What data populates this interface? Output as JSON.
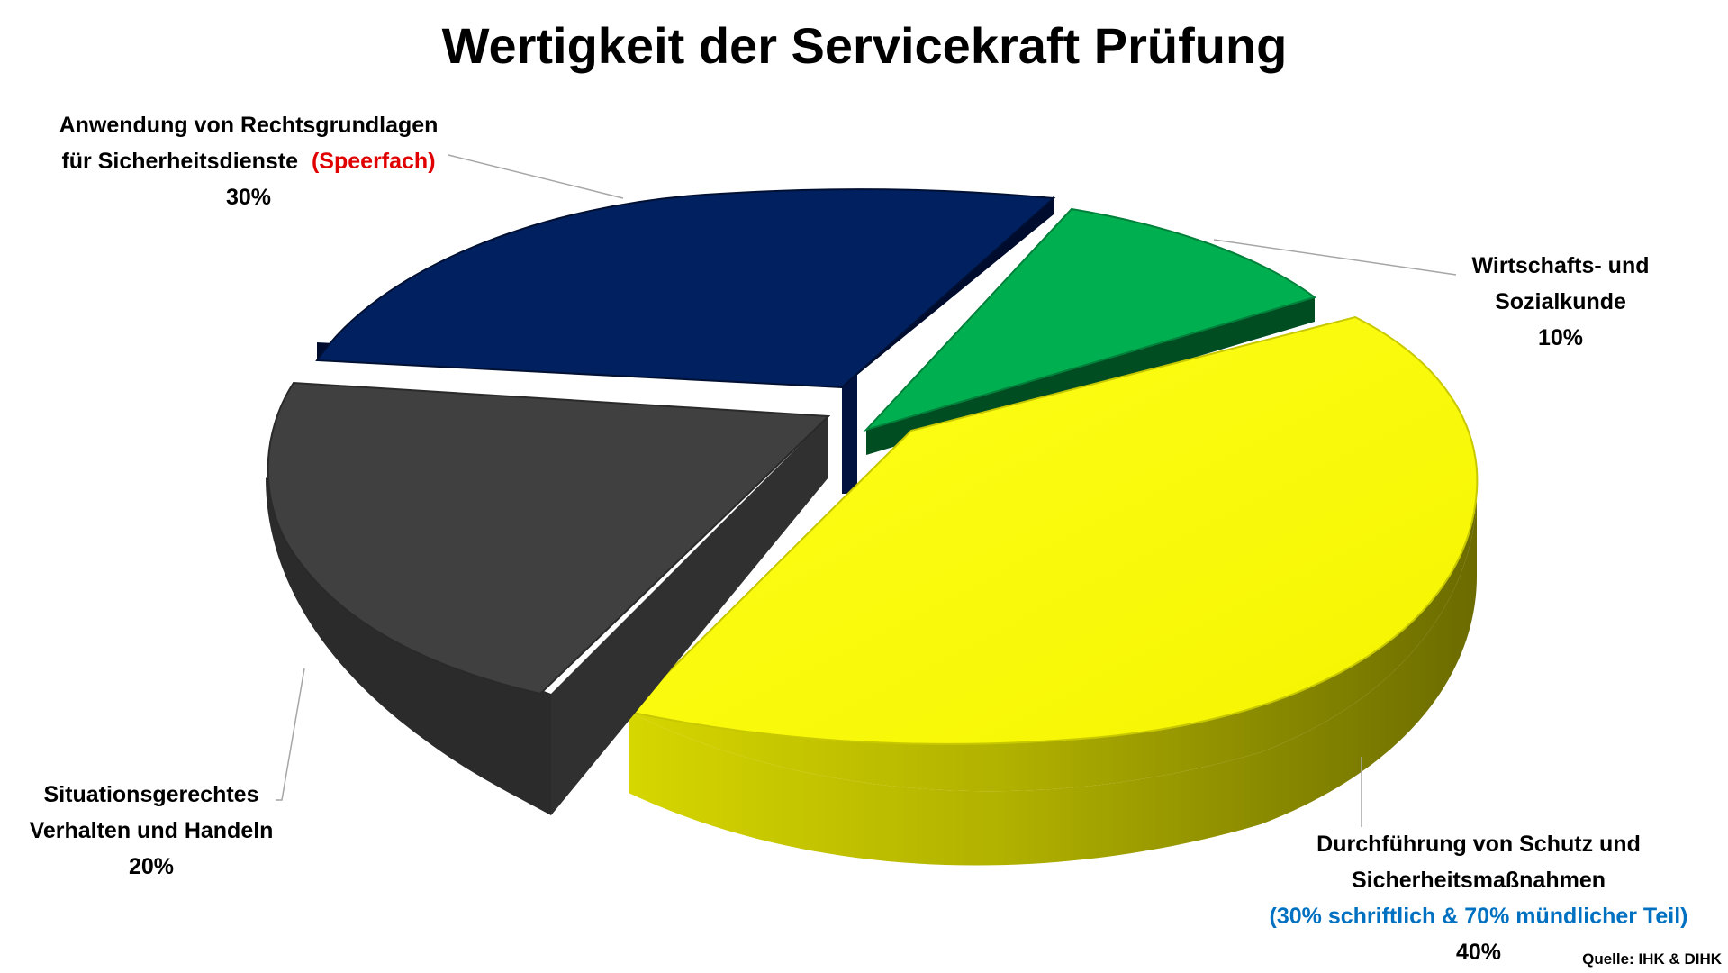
{
  "chart_data": {
    "type": "pie",
    "title": "Wertigkeit der Servicekraft Prüfung",
    "slices": [
      {
        "id": "rechtsgrundlagen",
        "value": 30,
        "label_line1": "Anwendung von Rechtsgrundlagen",
        "label_line2": "für Sicherheitsdienste",
        "label_extra": "(Speerfach)",
        "percent_label": "30%",
        "color": "#002060"
      },
      {
        "id": "wirtschaft",
        "value": 10,
        "label_line1": "Wirtschafts- und",
        "label_line2": "Sozialkunde",
        "percent_label": "10%",
        "color": "#00b050"
      },
      {
        "id": "durchfuehrung",
        "value": 40,
        "label_line1": "Durchführung von Schutz und",
        "label_line2": "Sicherheitsmaßnahmen",
        "label_note": "(30% schriftlich & 70% mündlicher Teil)",
        "percent_label": "40%",
        "color": "#ffff00"
      },
      {
        "id": "situation",
        "value": 20,
        "label_line1": "Situationsgerechtes",
        "label_line2": "Verhalten und Handeln",
        "percent_label": "20%",
        "color": "#404040"
      }
    ],
    "source": "Quelle: IHK & DIHK",
    "style": "3d-exploded"
  }
}
